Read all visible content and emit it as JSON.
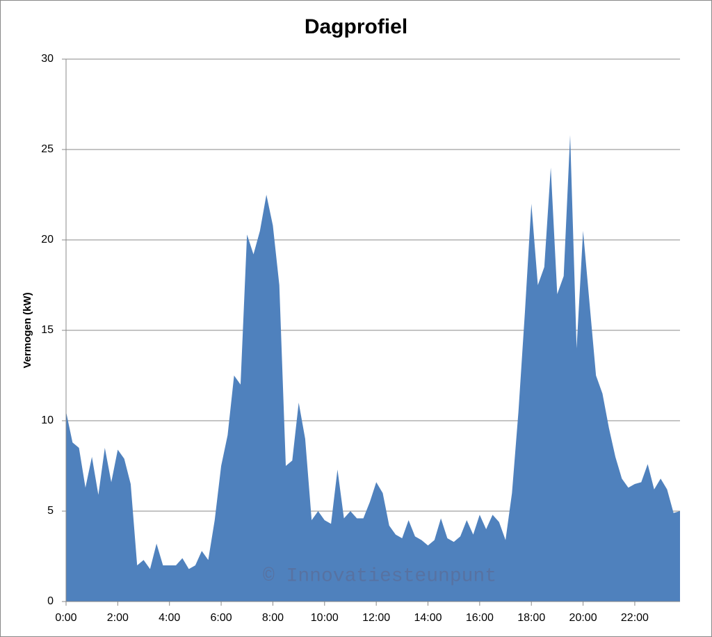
{
  "chart_data": {
    "type": "area",
    "title": "Dagprofiel",
    "y_label": "Vermogen (kW)",
    "watermark": "© Innovatiesteunpunt",
    "color": "#4f81bd",
    "grid": true,
    "x": [
      0,
      0.25,
      0.5,
      0.75,
      1,
      1.25,
      1.5,
      1.75,
      2,
      2.25,
      2.5,
      2.75,
      3,
      3.25,
      3.5,
      3.75,
      4,
      4.25,
      4.5,
      4.75,
      5,
      5.25,
      5.5,
      5.75,
      6,
      6.25,
      6.5,
      6.75,
      7,
      7.25,
      7.5,
      7.75,
      8,
      8.25,
      8.5,
      8.75,
      9,
      9.25,
      9.5,
      9.75,
      10,
      10.25,
      10.5,
      10.75,
      11,
      11.25,
      11.5,
      11.75,
      12,
      12.25,
      12.5,
      12.75,
      13,
      13.25,
      13.5,
      13.75,
      14,
      14.25,
      14.5,
      14.75,
      15,
      15.25,
      15.5,
      15.75,
      16,
      16.25,
      16.5,
      16.75,
      17,
      17.25,
      17.5,
      17.75,
      18,
      18.25,
      18.5,
      18.75,
      19,
      19.25,
      19.5,
      19.75,
      20,
      20.25,
      20.5,
      20.75,
      21,
      21.25,
      21.5,
      21.75,
      22,
      22.25,
      22.5,
      22.75,
      23,
      23.25,
      23.5,
      23.75
    ],
    "values": [
      10.5,
      8.8,
      8.5,
      6.3,
      8.0,
      5.9,
      8.5,
      6.6,
      8.4,
      7.9,
      6.5,
      2.0,
      2.3,
      1.8,
      3.2,
      2.0,
      2.0,
      2.0,
      2.4,
      1.8,
      2.0,
      2.8,
      2.3,
      4.5,
      7.5,
      9.2,
      12.5,
      12.0,
      20.3,
      19.2,
      20.5,
      22.5,
      20.8,
      17.5,
      7.5,
      7.8,
      11.0,
      9.0,
      4.5,
      5.0,
      4.5,
      4.3,
      7.3,
      4.6,
      5.0,
      4.6,
      4.6,
      5.5,
      6.6,
      6.0,
      4.2,
      3.7,
      3.5,
      4.5,
      3.6,
      3.4,
      3.1,
      3.4,
      4.6,
      3.5,
      3.3,
      3.6,
      4.5,
      3.7,
      4.8,
      4.0,
      4.8,
      4.4,
      3.4,
      6.0,
      10.5,
      16.0,
      22.0,
      17.5,
      18.5,
      24.0,
      17.0,
      18.0,
      25.8,
      14.0,
      20.5,
      16.5,
      12.5,
      11.5,
      9.6,
      8.0,
      6.8,
      6.3,
      6.5,
      6.6,
      7.6,
      6.2,
      6.8,
      6.2,
      4.9,
      5.0
    ],
    "xlim": [
      0,
      23.75
    ],
    "xticks": [
      {
        "value": 0,
        "label": "0:00"
      },
      {
        "value": 2,
        "label": "2:00"
      },
      {
        "value": 4,
        "label": "4:00"
      },
      {
        "value": 6,
        "label": "6:00"
      },
      {
        "value": 8,
        "label": "8:00"
      },
      {
        "value": 10,
        "label": "10:00"
      },
      {
        "value": 12,
        "label": "12:00"
      },
      {
        "value": 14,
        "label": "14:00"
      },
      {
        "value": 16,
        "label": "16:00"
      },
      {
        "value": 18,
        "label": "18:00"
      },
      {
        "value": 20,
        "label": "20:00"
      },
      {
        "value": 22,
        "label": "22:00"
      }
    ],
    "ylim": [
      0,
      30
    ],
    "yticks": [
      0,
      5,
      10,
      15,
      20,
      25,
      30
    ]
  }
}
